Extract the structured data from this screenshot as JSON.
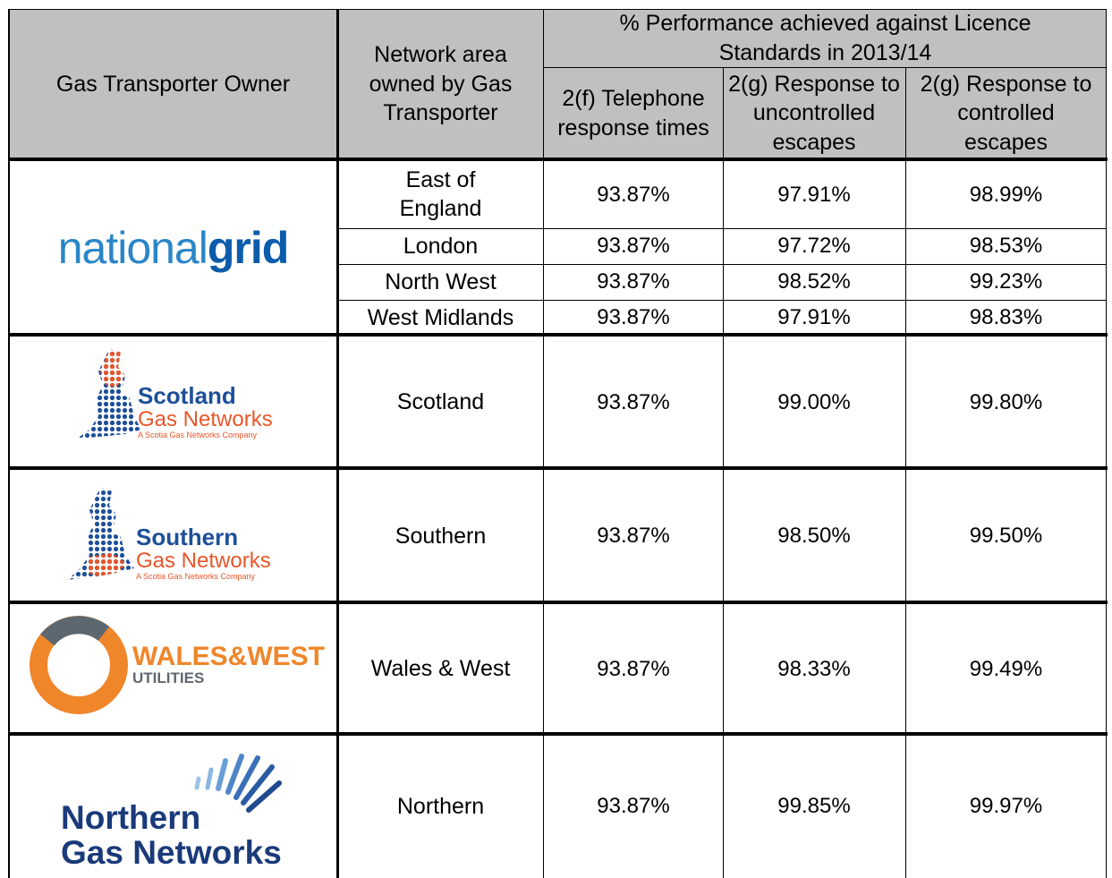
{
  "header": {
    "owner": "Gas Transporter Owner",
    "area": "Network area owned by Gas Transporter",
    "performance": "% Performance achieved against Licence Standards in 2013/14",
    "columns": [
      "2(f) Telephone response times",
      "2(g) Response to uncontrolled escapes",
      "2(g) Response to controlled escapes"
    ]
  },
  "owners": [
    {
      "logo": [
        "national",
        "grid"
      ]
    },
    {
      "logo": [
        "Scotland",
        "Gas Networks",
        "A Scotia Gas Networks Company"
      ]
    },
    {
      "logo": [
        "Southern",
        "Gas Networks",
        "A Scotia Gas Networks Company"
      ]
    },
    {
      "logo": [
        "WALES&WEST",
        "UTILITIES"
      ]
    },
    {
      "logo": [
        "Northern",
        "Gas Networks"
      ]
    }
  ],
  "rows": [
    {
      "area": "East of England",
      "values": [
        "93.87%",
        "97.91%",
        "98.99%"
      ]
    },
    {
      "area": "London",
      "values": [
        "93.87%",
        "97.72%",
        "98.53%"
      ]
    },
    {
      "area": "North West",
      "values": [
        "93.87%",
        "98.52%",
        "99.23%"
      ]
    },
    {
      "area": "West Midlands",
      "values": [
        "93.87%",
        "97.91%",
        "98.83%"
      ]
    },
    {
      "area": "Scotland",
      "values": [
        "93.87%",
        "99.00%",
        "99.80%"
      ]
    },
    {
      "area": "Southern",
      "values": [
        "93.87%",
        "98.50%",
        "99.50%"
      ]
    },
    {
      "area": "Wales & West",
      "values": [
        "93.87%",
        "98.33%",
        "99.49%"
      ]
    },
    {
      "area": "Northern",
      "values": [
        "93.87%",
        "99.85%",
        "99.97%"
      ]
    }
  ]
}
